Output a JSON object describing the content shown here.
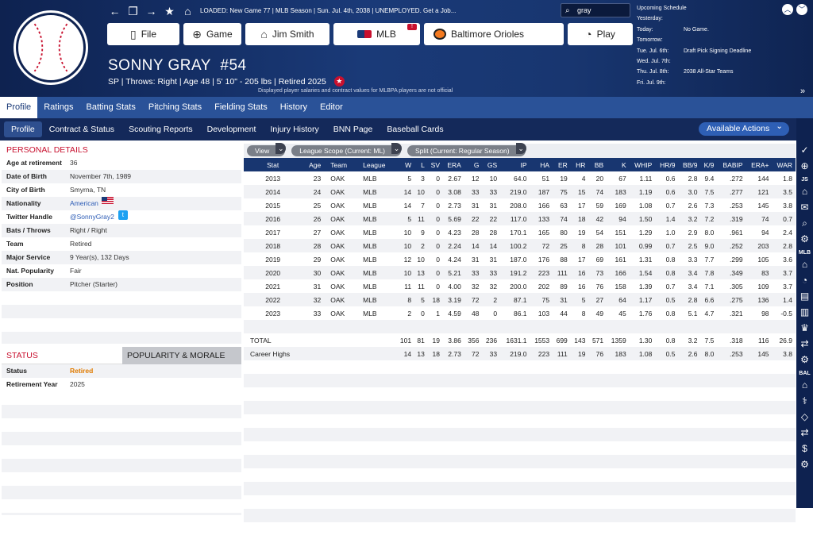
{
  "header": {
    "top_info": "LOADED: New Game 77  |  MLB Season  |  Sun. Jul. 4th, 2038  |  UNEMPLOYED. Get a Job...",
    "search_value": "gray",
    "nav_buttons": [
      {
        "label": "File",
        "icon": "file-icon"
      },
      {
        "label": "Game",
        "icon": "globe-icon"
      },
      {
        "label": "Jim Smith",
        "icon": "house-icon"
      },
      {
        "label": "MLB",
        "icon": "mlb-logo-icon",
        "badge": "!"
      },
      {
        "label": "Baltimore Orioles",
        "icon": "orioles-logo-icon"
      },
      {
        "label": "Play",
        "icon": "baseball-icon"
      }
    ],
    "player_name": "SONNY GRAY",
    "player_number": "#54",
    "player_info": "SP | Throws: Right  |  Age 48  |  5' 10\" - 205 lbs  |  Retired 2025",
    "disclaimer": "Displayed player salaries and contract values for MLBPA players are not official"
  },
  "schedule": {
    "title": "Upcoming Schedule",
    "rows": [
      {
        "day": "Yesterday:",
        "event": ""
      },
      {
        "day": "Today:",
        "event": "No Game."
      },
      {
        "day": "Tomorrow:",
        "event": ""
      },
      {
        "day": "Tue. Jul. 6th:",
        "event": "Draft Pick Signing Deadline"
      },
      {
        "day": "Wed. Jul. 7th:",
        "event": ""
      },
      {
        "day": "Thu. Jul. 8th:",
        "event": "2038 All-Star Teams"
      },
      {
        "day": "Fri. Jul. 9th:",
        "event": ""
      }
    ]
  },
  "tabs_primary": [
    "Profile",
    "Ratings",
    "Batting Stats",
    "Pitching Stats",
    "Fielding Stats",
    "History",
    "Editor"
  ],
  "tabs_secondary": [
    "Profile",
    "Contract & Status",
    "Scouting Reports",
    "Development",
    "Injury History",
    "BNN Page",
    "Baseball Cards"
  ],
  "available_actions": "Available Actions",
  "sidebar": {
    "js_label": "JS",
    "mlb_label": "MLB",
    "bal_label": "BAL"
  },
  "personal_details": {
    "title": "PERSONAL DETAILS",
    "rows": [
      {
        "k": "Age at retirement",
        "v": "36"
      },
      {
        "k": "Date of Birth",
        "v": "November 7th, 1989"
      },
      {
        "k": "City of Birth",
        "v": "Smyrna, TN"
      },
      {
        "k": "Nationality",
        "v": "American"
      },
      {
        "k": "Twitter Handle",
        "v": "@SonnyGray2"
      },
      {
        "k": "Bats / Throws",
        "v": "Right / Right"
      },
      {
        "k": "Team",
        "v": "Retired"
      },
      {
        "k": "Major Service",
        "v": "9 Year(s), 132 Days"
      },
      {
        "k": "Nat. Popularity",
        "v": "Fair"
      },
      {
        "k": "Position",
        "v": "Pitcher (Starter)"
      }
    ]
  },
  "status": {
    "tab_status": "STATUS",
    "tab_popularity": "POPULARITY & MORALE",
    "rows": [
      {
        "k": "Status",
        "v": "Retired"
      },
      {
        "k": "Retirement Year",
        "v": "2025"
      }
    ]
  },
  "filters": {
    "view": "View",
    "league_scope": "League Scope  (Current: ML)",
    "split": "Split  (Current: Regular Season)"
  },
  "stats": {
    "columns": [
      "Stat",
      "Age",
      "Team",
      "League",
      "W",
      "L",
      "SV",
      "ERA",
      "G",
      "GS",
      "IP",
      "HA",
      "ER",
      "HR",
      "BB",
      "K",
      "WHIP",
      "HR/9",
      "BB/9",
      "K/9",
      "BABIP",
      "ERA+",
      "WAR"
    ],
    "rows": [
      [
        "2013",
        "23",
        "OAK",
        "MLB",
        "5",
        "3",
        "0",
        "2.67",
        "12",
        "10",
        "64.0",
        "51",
        "19",
        "4",
        "20",
        "67",
        "1.11",
        "0.6",
        "2.8",
        "9.4",
        ".272",
        "144",
        "1.8"
      ],
      [
        "2014",
        "24",
        "OAK",
        "MLB",
        "14",
        "10",
        "0",
        "3.08",
        "33",
        "33",
        "219.0",
        "187",
        "75",
        "15",
        "74",
        "183",
        "1.19",
        "0.6",
        "3.0",
        "7.5",
        ".277",
        "121",
        "3.5"
      ],
      [
        "2015",
        "25",
        "OAK",
        "MLB",
        "14",
        "7",
        "0",
        "2.73",
        "31",
        "31",
        "208.0",
        "166",
        "63",
        "17",
        "59",
        "169",
        "1.08",
        "0.7",
        "2.6",
        "7.3",
        ".253",
        "145",
        "3.8"
      ],
      [
        "2016",
        "26",
        "OAK",
        "MLB",
        "5",
        "11",
        "0",
        "5.69",
        "22",
        "22",
        "117.0",
        "133",
        "74",
        "18",
        "42",
        "94",
        "1.50",
        "1.4",
        "3.2",
        "7.2",
        ".319",
        "74",
        "0.7"
      ],
      [
        "2017",
        "27",
        "OAK",
        "MLB",
        "10",
        "9",
        "0",
        "4.23",
        "28",
        "28",
        "170.1",
        "165",
        "80",
        "19",
        "54",
        "151",
        "1.29",
        "1.0",
        "2.9",
        "8.0",
        ".961",
        "94",
        "2.4"
      ],
      [
        "2018",
        "28",
        "OAK",
        "MLB",
        "10",
        "2",
        "0",
        "2.24",
        "14",
        "14",
        "100.2",
        "72",
        "25",
        "8",
        "28",
        "101",
        "0.99",
        "0.7",
        "2.5",
        "9.0",
        ".252",
        "203",
        "2.8"
      ],
      [
        "2019",
        "29",
        "OAK",
        "MLB",
        "12",
        "10",
        "0",
        "4.24",
        "31",
        "31",
        "187.0",
        "176",
        "88",
        "17",
        "69",
        "161",
        "1.31",
        "0.8",
        "3.3",
        "7.7",
        ".299",
        "105",
        "3.6"
      ],
      [
        "2020",
        "30",
        "OAK",
        "MLB",
        "10",
        "13",
        "0",
        "5.21",
        "33",
        "33",
        "191.2",
        "223",
        "111",
        "16",
        "73",
        "166",
        "1.54",
        "0.8",
        "3.4",
        "7.8",
        ".349",
        "83",
        "3.7"
      ],
      [
        "2021",
        "31",
        "OAK",
        "MLB",
        "11",
        "11",
        "0",
        "4.00",
        "32",
        "32",
        "200.0",
        "202",
        "89",
        "16",
        "76",
        "158",
        "1.39",
        "0.7",
        "3.4",
        "7.1",
        ".305",
        "109",
        "3.7"
      ],
      [
        "2022",
        "32",
        "OAK",
        "MLB",
        "8",
        "5",
        "18",
        "3.19",
        "72",
        "2",
        "87.1",
        "75",
        "31",
        "5",
        "27",
        "64",
        "1.17",
        "0.5",
        "2.8",
        "6.6",
        ".275",
        "136",
        "1.4"
      ],
      [
        "2023",
        "33",
        "OAK",
        "MLB",
        "2",
        "0",
        "1",
        "4.59",
        "48",
        "0",
        "86.1",
        "103",
        "44",
        "8",
        "49",
        "45",
        "1.76",
        "0.8",
        "5.1",
        "4.7",
        ".321",
        "98",
        "-0.5"
      ]
    ],
    "total": [
      "TOTAL",
      "",
      "",
      "",
      "101",
      "81",
      "19",
      "3.86",
      "356",
      "236",
      "1631.1",
      "1553",
      "699",
      "143",
      "571",
      "1359",
      "1.30",
      "0.8",
      "3.2",
      "7.5",
      ".318",
      "116",
      "26.9"
    ],
    "career_highs": [
      "Career Highs",
      "",
      "",
      "",
      "14",
      "13",
      "18",
      "2.73",
      "72",
      "33",
      "219.0",
      "223",
      "111",
      "19",
      "76",
      "183",
      "1.08",
      "0.5",
      "2.6",
      "8.0",
      ".253",
      "145",
      "3.8"
    ]
  }
}
